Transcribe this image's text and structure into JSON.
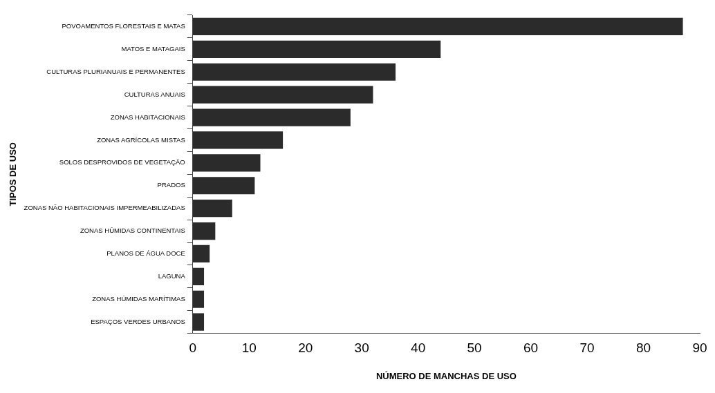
{
  "chart_data": {
    "type": "bar",
    "orientation": "horizontal",
    "xlabel": "NÚMERO DE MANCHAS DE USO",
    "ylabel": "TIPOS DE USO",
    "categories": [
      "POVOAMENTOS FLORESTAIS E MATAS",
      "MATOS E MATAGAIS",
      "CULTURAS PLURIANUAIS E PERMANENTES",
      "CULTURAS ANUAIS",
      "ZONAS HABITACIONAIS",
      "ZONAS AGRÍCOLAS MISTAS",
      "SOLOS DESPROVIDOS DE VEGETAÇÃO",
      "PRADOS",
      "ZONAS NÃO HABITACIONAIS IMPERMEABILIZADAS",
      "ZONAS HÚMIDAS CONTINENTAIS",
      "PLANOS DE ÁGUA DOCE",
      "LAGUNA",
      "ZONAS HÚMIDAS MARÍTIMAS",
      "ESPAÇOS VERDES URBANOS"
    ],
    "values": [
      87,
      44,
      36,
      32,
      28,
      16,
      12,
      11,
      7,
      4,
      3,
      2,
      2,
      2
    ],
    "color": "#2b2b2b",
    "xlim": [
      0,
      90
    ],
    "xticks": [
      0,
      10,
      20,
      30,
      40,
      50,
      60,
      70,
      80,
      90
    ],
    "grid": false,
    "legend": false
  }
}
